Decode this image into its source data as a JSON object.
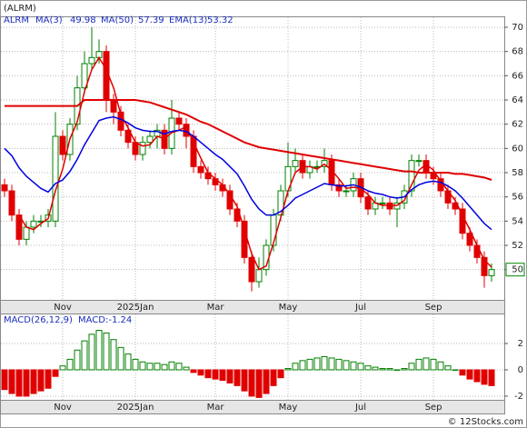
{
  "chart_data": [
    {
      "type": "candlestick",
      "title": "(ALRM)",
      "symbol": "ALRM",
      "categories": [
        null,
        null,
        null,
        null,
        null,
        null,
        null,
        null,
        "Nov",
        null,
        null,
        null,
        null,
        null,
        null,
        null,
        null,
        null,
        "2025Jan",
        null,
        null,
        null,
        null,
        null,
        null,
        null,
        null,
        null,
        null,
        "Mar",
        null,
        null,
        null,
        null,
        null,
        null,
        null,
        null,
        null,
        "May",
        null,
        null,
        null,
        null,
        null,
        null,
        null,
        null,
        null,
        "Jul",
        null,
        null,
        null,
        null,
        null,
        null,
        null,
        null,
        null,
        "Sep",
        null,
        null,
        null,
        null,
        null,
        null,
        null,
        null
      ],
      "open": [
        57,
        56.5,
        54.5,
        52.5,
        53.5,
        54,
        54,
        54,
        61,
        59.5,
        62,
        65,
        67,
        67.5,
        68,
        64,
        63,
        61.5,
        60.5,
        59.5,
        60.5,
        61,
        61.5,
        60,
        62.5,
        62,
        61,
        58.5,
        58,
        57.5,
        57,
        56.5,
        55,
        54,
        51,
        49,
        50,
        52,
        54.5,
        56.5,
        58.5,
        59,
        58,
        58.5,
        58.5,
        59,
        57,
        56.5,
        56.5,
        57.5,
        56,
        55,
        55.5,
        55.5,
        55,
        55.5,
        56.5,
        59,
        59,
        58,
        57.5,
        56.5,
        55.5,
        55,
        53,
        52,
        51,
        49.5
      ],
      "high": [
        57.5,
        57,
        55,
        54,
        54.5,
        54.5,
        55,
        63,
        61.5,
        62.5,
        66,
        68,
        70,
        69,
        68.5,
        64.5,
        63.5,
        62,
        61,
        61,
        61.5,
        62,
        62,
        64,
        63,
        62.5,
        61.5,
        59,
        58.5,
        58,
        57.5,
        57,
        55.5,
        54.5,
        51.5,
        51,
        52.5,
        55,
        57,
        60.5,
        60,
        59.5,
        59,
        59,
        60,
        59.5,
        57.5,
        57,
        58,
        58,
        56.5,
        56,
        56,
        56,
        56,
        57,
        59.5,
        59.5,
        59.5,
        58.5,
        58,
        57,
        56,
        55.5,
        53.5,
        52.5,
        51.5,
        50.5
      ],
      "low": [
        56,
        54,
        52,
        52,
        53,
        53.5,
        53.5,
        53.5,
        59,
        59,
        61.5,
        64.5,
        66.5,
        67,
        63,
        62,
        61,
        60,
        59,
        59,
        60,
        60,
        59.5,
        59.5,
        61.5,
        60,
        58,
        57.5,
        57,
        56.5,
        56,
        54.5,
        53.5,
        50.5,
        48.2,
        48.5,
        49.5,
        51.5,
        54,
        56,
        58,
        57.5,
        57.5,
        58,
        58,
        56.5,
        56,
        56,
        56,
        55.5,
        54.5,
        54.5,
        55,
        54.5,
        53.5,
        55,
        56,
        58.5,
        57.5,
        57,
        56,
        55,
        54.5,
        52.5,
        51.5,
        50.5,
        48.5,
        49
      ],
      "close": [
        56.5,
        54.5,
        52.5,
        53.5,
        54,
        54,
        54.5,
        61,
        59.5,
        62,
        65,
        67,
        67.5,
        68,
        64,
        63,
        61.5,
        60.5,
        59.5,
        60.5,
        61,
        61.5,
        60,
        62.5,
        62,
        61,
        58.5,
        58,
        57.5,
        57,
        56.5,
        55,
        54,
        51,
        49,
        50,
        52,
        54.5,
        56.5,
        58.5,
        59,
        58,
        58.5,
        58.5,
        59,
        57,
        56.5,
        56.5,
        57.5,
        56,
        55,
        55.5,
        55.5,
        55,
        55.5,
        56.5,
        59,
        59,
        58,
        57.5,
        56.5,
        55.5,
        55,
        53,
        52,
        51,
        49.5,
        50
      ],
      "up_color": "#008000",
      "down_color": "#e00000",
      "series": [
        {
          "name": "MA(3)",
          "color": "#e00000",
          "values": [
            null,
            null,
            54.5,
            53.5,
            53.3,
            53.8,
            54.2,
            56.5,
            58.3,
            60.8,
            62.2,
            64.7,
            66.5,
            67.5,
            66.5,
            65,
            62.8,
            61.7,
            60.5,
            60.2,
            60.3,
            61,
            60.8,
            61.3,
            61.5,
            61.8,
            60.5,
            59.2,
            58,
            57.5,
            57,
            56.2,
            55.2,
            53.3,
            51.3,
            50,
            50.3,
            52.2,
            54.3,
            56.5,
            58,
            58.5,
            58.5,
            58.3,
            58.7,
            58.2,
            57.5,
            56.7,
            56.8,
            56.7,
            56.2,
            55.5,
            55.3,
            55.3,
            55.3,
            55.7,
            57,
            58.2,
            58.7,
            58.2,
            57.3,
            56.5,
            55.7,
            54.5,
            53.3,
            52,
            50.8,
            50.2
          ]
        },
        {
          "name": "MA(50)",
          "color": "#e00000",
          "values": [
            63.5,
            63.5,
            63.5,
            63.5,
            63.5,
            63.5,
            63.5,
            63.5,
            63.5,
            63.5,
            63.5,
            64,
            64,
            64,
            64,
            64,
            64,
            64,
            64,
            63.9,
            63.8,
            63.6,
            63.4,
            63.2,
            63,
            62.8,
            62.5,
            62.2,
            62,
            61.7,
            61.4,
            61.1,
            60.8,
            60.5,
            60.3,
            60.1,
            60,
            59.9,
            59.8,
            59.7,
            59.6,
            59.5,
            59.4,
            59.3,
            59.2,
            59.1,
            59,
            58.9,
            58.8,
            58.7,
            58.6,
            58.5,
            58.4,
            58.3,
            58.2,
            58.1,
            58.1,
            58,
            58,
            58,
            58,
            58,
            57.9,
            57.9,
            57.8,
            57.7,
            57.6,
            57.4
          ]
        },
        {
          "name": "EMA(13)",
          "color": "#0000e0",
          "values": [
            60,
            59.4,
            58.4,
            57.7,
            57.2,
            56.7,
            56.4,
            57.1,
            57.4,
            58.1,
            59.1,
            60.3,
            61.3,
            62.3,
            62.5,
            62.6,
            62.4,
            62.1,
            61.7,
            61.5,
            61.4,
            61.4,
            61.2,
            61.4,
            61.5,
            61.4,
            61,
            60.5,
            60,
            59.5,
            59.1,
            58.5,
            57.9,
            56.9,
            55.8,
            55,
            54.5,
            54.5,
            54.8,
            55.3,
            55.9,
            56.2,
            56.5,
            56.8,
            57.1,
            57,
            56.9,
            56.9,
            57,
            56.8,
            56.5,
            56.3,
            56.2,
            56,
            55.9,
            56,
            56.6,
            57,
            57.2,
            57.3,
            57.2,
            56.9,
            56.5,
            55.9,
            55.2,
            54.5,
            53.8,
            53.3
          ]
        }
      ],
      "legend_values": [
        49.98,
        57.39,
        53.32
      ],
      "ylim": [
        47.5,
        70.9
      ],
      "yticks": [
        50,
        52,
        54,
        56,
        58,
        60,
        62,
        64,
        66,
        68,
        70
      ],
      "grid": true
    },
    {
      "type": "bar",
      "title": "MACD(26,12,9)",
      "label": "MACD:-1.24",
      "values": [
        -1.5,
        -1.8,
        -2.0,
        -2.0,
        -1.8,
        -1.6,
        -1.4,
        -0.5,
        0.3,
        0.8,
        1.5,
        2.2,
        2.7,
        3.0,
        2.8,
        2.3,
        1.7,
        1.2,
        0.8,
        0.6,
        0.5,
        0.5,
        0.4,
        0.6,
        0.5,
        0.2,
        -0.2,
        -0.4,
        -0.6,
        -0.7,
        -0.8,
        -1.0,
        -1.2,
        -1.6,
        -2.0,
        -2.1,
        -1.8,
        -1.2,
        -0.6,
        0.1,
        0.5,
        0.7,
        0.8,
        0.9,
        1.0,
        0.9,
        0.8,
        0.7,
        0.6,
        0.5,
        0.3,
        0.2,
        0.1,
        0.1,
        0.0,
        0.1,
        0.5,
        0.8,
        0.9,
        0.8,
        0.6,
        0.3,
        0,
        -0.4,
        -0.7,
        -0.9,
        -1.1,
        -1.2
      ],
      "up_color": "#008000",
      "down_color": "#e00000",
      "ylim": [
        -2.28,
        4.28
      ],
      "yticks": [
        -2,
        0,
        2
      ],
      "grid": true
    },
    {
      "type": "footer",
      "text": "© 12Stocks.com"
    }
  ]
}
